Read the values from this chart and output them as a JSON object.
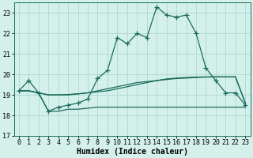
{
  "xlabel": "Humidex (Indice chaleur)",
  "xlim": [
    -0.5,
    23.5
  ],
  "ylim": [
    17.0,
    23.5
  ],
  "yticks": [
    17,
    18,
    19,
    20,
    21,
    22,
    23
  ],
  "xticks": [
    0,
    1,
    2,
    3,
    4,
    5,
    6,
    7,
    8,
    9,
    10,
    11,
    12,
    13,
    14,
    15,
    16,
    17,
    18,
    19,
    20,
    21,
    22,
    23
  ],
  "background_color": "#d4f0eb",
  "grid_color": "#b0d8d0",
  "line_color": "#1a6b5a",
  "series0": [
    19.2,
    19.7,
    19.1,
    18.2,
    18.4,
    18.5,
    18.6,
    18.8,
    19.8,
    20.2,
    21.8,
    21.5,
    22.0,
    21.8,
    23.3,
    22.9,
    22.8,
    22.9,
    22.0,
    20.3,
    19.7,
    19.1,
    19.1,
    18.5
  ],
  "series1": [
    19.2,
    19.2,
    19.1,
    19.0,
    19.0,
    19.0,
    19.05,
    19.1,
    19.15,
    19.2,
    19.3,
    19.4,
    19.5,
    19.6,
    19.7,
    19.75,
    19.8,
    19.82,
    19.85,
    19.87,
    19.88,
    19.88,
    19.88,
    18.6
  ],
  "series2": [
    19.2,
    19.2,
    19.1,
    19.0,
    19.0,
    19.02,
    19.05,
    19.1,
    19.2,
    19.3,
    19.4,
    19.5,
    19.6,
    19.65,
    19.7,
    19.78,
    19.82,
    19.85,
    19.87,
    19.88,
    19.88,
    19.88,
    19.88,
    18.6
  ],
  "series3": [
    19.2,
    19.2,
    19.1,
    18.2,
    18.2,
    18.3,
    18.3,
    18.35,
    18.4,
    18.4,
    18.4,
    18.4,
    18.4,
    18.4,
    18.4,
    18.4,
    18.4,
    18.4,
    18.4,
    18.4,
    18.4,
    18.4,
    18.4,
    18.4
  ],
  "marker": "+",
  "markersize": 4,
  "markeredgewidth": 0.9,
  "linewidth": 0.9,
  "fontsize_ticks": 6,
  "fontsize_label": 7
}
